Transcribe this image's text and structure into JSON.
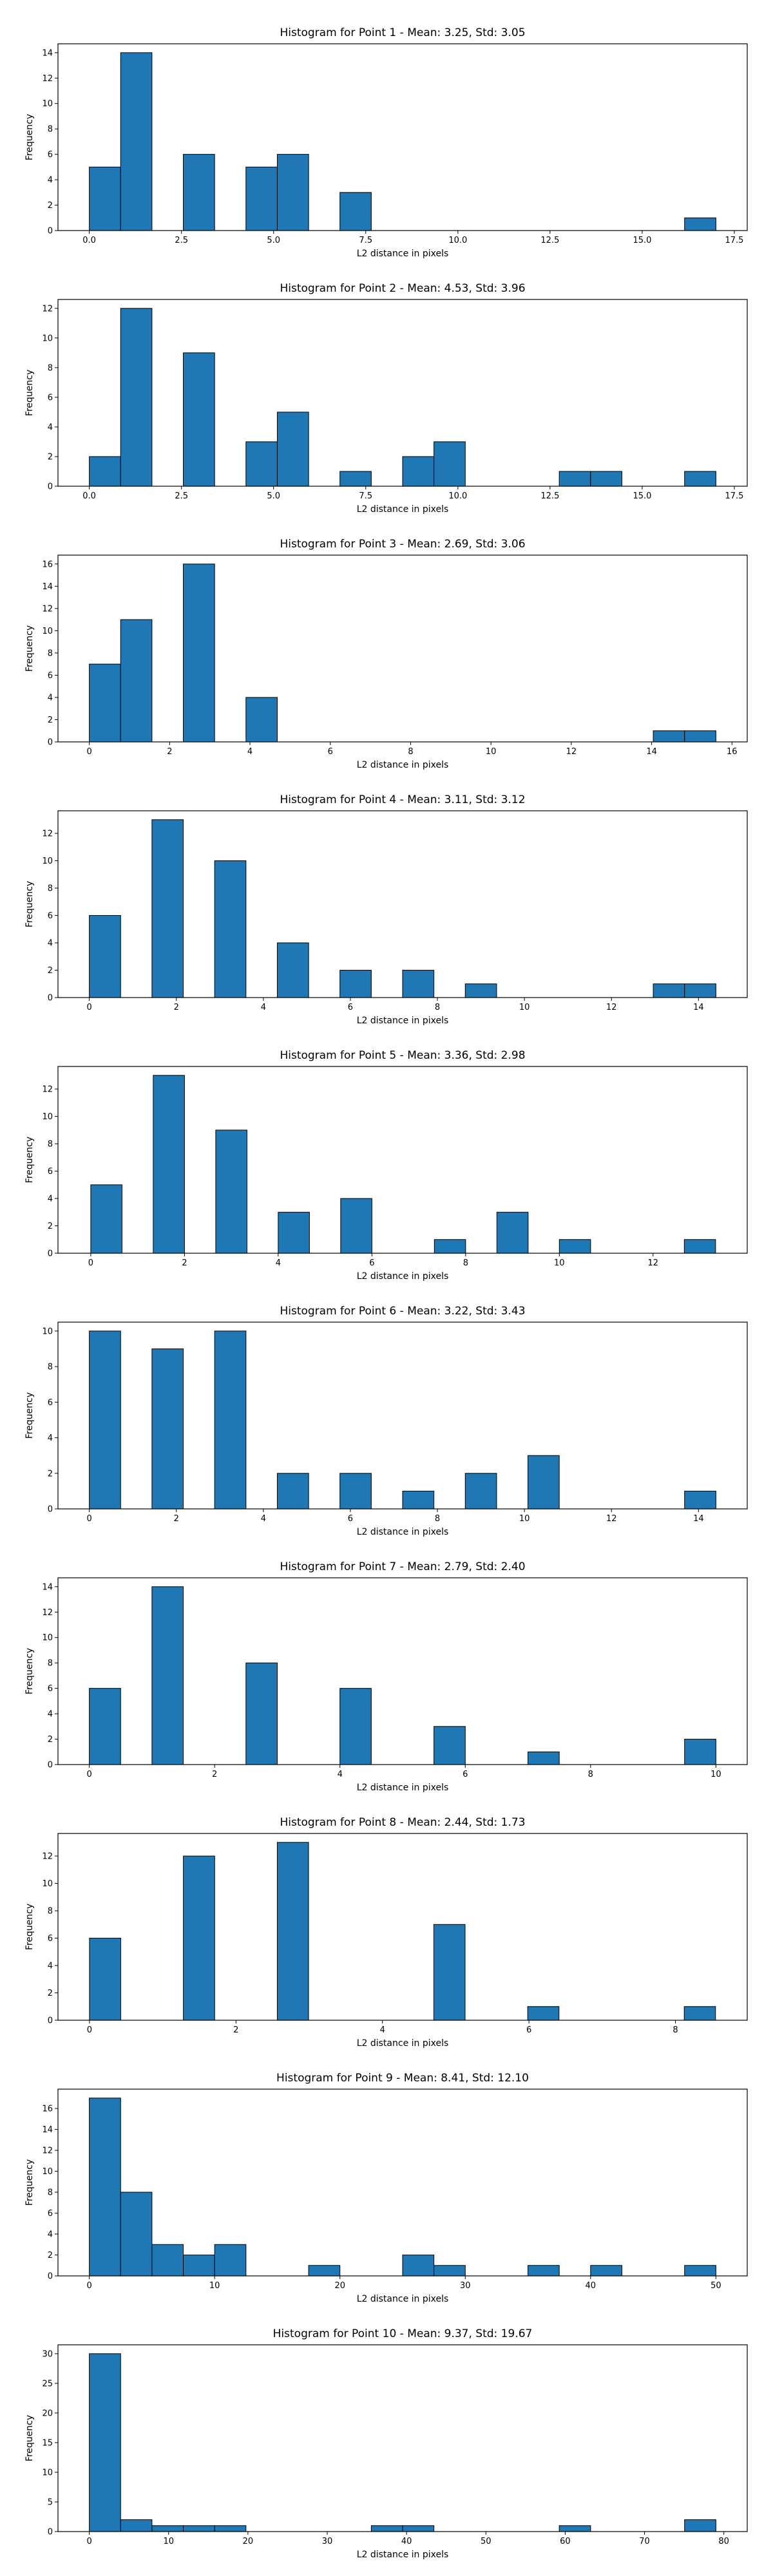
{
  "chart_data": [
    {
      "type": "bar",
      "title": "Histogram for Point 1 - Mean: 3.25, Std: 3.05",
      "xlabel": "L2 distance in pixels",
      "ylabel": "Frequency",
      "xlim": [
        -0.85,
        17.85
      ],
      "ylim": [
        0,
        14.7
      ],
      "xticks": [
        "0.0",
        "2.5",
        "5.0",
        "7.5",
        "10.0",
        "12.5",
        "15.0",
        "17.5"
      ],
      "xtick_values": [
        0,
        2.5,
        5,
        7.5,
        10,
        12.5,
        15,
        17.5
      ],
      "yticks": [
        "0",
        "2",
        "4",
        "6",
        "8",
        "10",
        "12",
        "14"
      ],
      "ytick_values": [
        0,
        2,
        4,
        6,
        8,
        10,
        12,
        14
      ],
      "bar_width": 0.85,
      "bars": [
        [
          0,
          5
        ],
        [
          0.85,
          14
        ],
        [
          2.55,
          6
        ],
        [
          4.25,
          5
        ],
        [
          5.1,
          6
        ],
        [
          6.8,
          3
        ],
        [
          16.15,
          1
        ]
      ],
      "color": "#1f77b4",
      "grid": false
    },
    {
      "type": "bar",
      "title": "Histogram for Point 2 - Mean: 4.53, Std: 3.96",
      "xlabel": "L2 distance in pixels",
      "ylabel": "Frequency",
      "xlim": [
        -0.85,
        17.85
      ],
      "ylim": [
        0,
        12.6
      ],
      "xticks": [
        "0.0",
        "2.5",
        "5.0",
        "7.5",
        "10.0",
        "12.5",
        "15.0",
        "17.5"
      ],
      "xtick_values": [
        0,
        2.5,
        5,
        7.5,
        10,
        12.5,
        15,
        17.5
      ],
      "yticks": [
        "0",
        "2",
        "4",
        "6",
        "8",
        "10",
        "12"
      ],
      "ytick_values": [
        0,
        2,
        4,
        6,
        8,
        10,
        12
      ],
      "bar_width": 0.85,
      "bars": [
        [
          0,
          2
        ],
        [
          0.85,
          12
        ],
        [
          2.55,
          9
        ],
        [
          4.25,
          3
        ],
        [
          5.1,
          5
        ],
        [
          6.8,
          1
        ],
        [
          8.5,
          2
        ],
        [
          9.35,
          3
        ],
        [
          12.75,
          1
        ],
        [
          13.6,
          1
        ],
        [
          16.15,
          1
        ]
      ],
      "color": "#1f77b4",
      "grid": false
    },
    {
      "type": "bar",
      "title": "Histogram for Point 3 - Mean: 2.69, Std: 3.06",
      "xlabel": "L2 distance in pixels",
      "ylabel": "Frequency",
      "xlim": [
        -0.78,
        16.38
      ],
      "ylim": [
        0,
        16.8
      ],
      "xticks": [
        "0",
        "2",
        "4",
        "6",
        "8",
        "10",
        "12",
        "14",
        "16"
      ],
      "xtick_values": [
        0,
        2,
        4,
        6,
        8,
        10,
        12,
        14,
        16
      ],
      "yticks": [
        "0",
        "2",
        "4",
        "6",
        "8",
        "10",
        "12",
        "14",
        "16"
      ],
      "ytick_values": [
        0,
        2,
        4,
        6,
        8,
        10,
        12,
        14,
        16
      ],
      "bar_width": 0.78,
      "bars": [
        [
          0,
          7
        ],
        [
          0.78,
          11
        ],
        [
          2.34,
          16
        ],
        [
          3.9,
          4
        ],
        [
          14.04,
          1
        ],
        [
          14.82,
          1
        ]
      ],
      "color": "#1f77b4",
      "grid": false
    },
    {
      "type": "bar",
      "title": "Histogram for Point 4 - Mean: 3.11, Std: 3.12",
      "xlabel": "L2 distance in pixels",
      "ylabel": "Frequency",
      "xlim": [
        -0.72,
        15.12
      ],
      "ylim": [
        0,
        13.65
      ],
      "xticks": [
        "0",
        "2",
        "4",
        "6",
        "8",
        "10",
        "12",
        "14"
      ],
      "xtick_values": [
        0,
        2,
        4,
        6,
        8,
        10,
        12,
        14
      ],
      "yticks": [
        "0",
        "2",
        "4",
        "6",
        "8",
        "10",
        "12"
      ],
      "ytick_values": [
        0,
        2,
        4,
        6,
        8,
        10,
        12
      ],
      "bar_width": 0.72,
      "bars": [
        [
          0,
          6
        ],
        [
          1.44,
          13
        ],
        [
          2.88,
          10
        ],
        [
          4.32,
          4
        ],
        [
          5.76,
          2
        ],
        [
          7.2,
          2
        ],
        [
          8.64,
          1
        ],
        [
          12.96,
          1
        ],
        [
          13.68,
          1
        ]
      ],
      "color": "#1f77b4",
      "grid": false
    },
    {
      "type": "bar",
      "title": "Histogram for Point 5 - Mean: 3.36, Std: 2.98",
      "xlabel": "L2 distance in pixels",
      "ylabel": "Frequency",
      "xlim": [
        -0.7,
        14.01
      ],
      "ylim": [
        0,
        13.65
      ],
      "xticks": [
        "0",
        "2",
        "4",
        "6",
        "8",
        "10",
        "12"
      ],
      "xtick_values": [
        0,
        2,
        4,
        6,
        8,
        10,
        12
      ],
      "yticks": [
        "0",
        "2",
        "4",
        "6",
        "8",
        "10",
        "12"
      ],
      "ytick_values": [
        0,
        2,
        4,
        6,
        8,
        10,
        12
      ],
      "bar_width": 0.667,
      "bars": [
        [
          0,
          5
        ],
        [
          1.333,
          13
        ],
        [
          2.667,
          9
        ],
        [
          4.0,
          3
        ],
        [
          5.333,
          4
        ],
        [
          7.333,
          1
        ],
        [
          8.667,
          3
        ],
        [
          10.0,
          1
        ],
        [
          12.667,
          1
        ]
      ],
      "color": "#1f77b4",
      "grid": false
    },
    {
      "type": "bar",
      "title": "Histogram for Point 6 - Mean: 3.22, Std: 3.43",
      "xlabel": "L2 distance in pixels",
      "ylabel": "Frequency",
      "xlim": [
        -0.72,
        15.12
      ],
      "ylim": [
        0,
        10.5
      ],
      "xticks": [
        "0",
        "2",
        "4",
        "6",
        "8",
        "10",
        "12",
        "14"
      ],
      "xtick_values": [
        0,
        2,
        4,
        6,
        8,
        10,
        12,
        14
      ],
      "yticks": [
        "0",
        "2",
        "4",
        "6",
        "8",
        "10"
      ],
      "ytick_values": [
        0,
        2,
        4,
        6,
        8,
        10
      ],
      "bar_width": 0.72,
      "bars": [
        [
          0,
          10
        ],
        [
          1.44,
          9
        ],
        [
          2.88,
          10
        ],
        [
          4.32,
          2
        ],
        [
          5.76,
          2
        ],
        [
          7.2,
          1
        ],
        [
          8.64,
          2
        ],
        [
          10.08,
          3
        ],
        [
          13.68,
          1
        ]
      ],
      "color": "#1f77b4",
      "grid": false
    },
    {
      "type": "bar",
      "title": "Histogram for Point 7 - Mean: 2.79, Std: 2.40",
      "xlabel": "L2 distance in pixels",
      "ylabel": "Frequency",
      "xlim": [
        -0.5,
        10.5
      ],
      "ylim": [
        0,
        14.7
      ],
      "xticks": [
        "0",
        "2",
        "4",
        "6",
        "8",
        "10"
      ],
      "xtick_values": [
        0,
        2,
        4,
        6,
        8,
        10
      ],
      "yticks": [
        "0",
        "2",
        "4",
        "6",
        "8",
        "10",
        "12",
        "14"
      ],
      "ytick_values": [
        0,
        2,
        4,
        6,
        8,
        10,
        12,
        14
      ],
      "bar_width": 0.5,
      "bars": [
        [
          0,
          6
        ],
        [
          1.0,
          14
        ],
        [
          2.5,
          8
        ],
        [
          4.0,
          6
        ],
        [
          5.5,
          3
        ],
        [
          7.0,
          1
        ],
        [
          9.5,
          2
        ]
      ],
      "color": "#1f77b4",
      "grid": false
    },
    {
      "type": "bar",
      "title": "Histogram for Point 8 - Mean: 2.44, Std: 1.73",
      "xlabel": "L2 distance in pixels",
      "ylabel": "Frequency",
      "xlim": [
        -0.43,
        8.98
      ],
      "ylim": [
        0,
        13.65
      ],
      "xticks": [
        "0",
        "2",
        "4",
        "6",
        "8"
      ],
      "xtick_values": [
        0,
        2,
        4,
        6,
        8
      ],
      "yticks": [
        "0",
        "2",
        "4",
        "6",
        "8",
        "10",
        "12"
      ],
      "ytick_values": [
        0,
        2,
        4,
        6,
        8,
        10,
        12
      ],
      "bar_width": 0.427,
      "bars": [
        [
          0,
          6
        ],
        [
          1.282,
          12
        ],
        [
          2.564,
          13
        ],
        [
          4.701,
          7
        ],
        [
          5.983,
          1
        ],
        [
          8.12,
          1
        ]
      ],
      "color": "#1f77b4",
      "grid": false
    },
    {
      "type": "bar",
      "title": "Histogram for Point 9 - Mean: 8.41, Std: 12.10",
      "xlabel": "L2 distance in pixels",
      "ylabel": "Frequency",
      "xlim": [
        -2.5,
        52.5
      ],
      "ylim": [
        0,
        17.85
      ],
      "xticks": [
        "0",
        "10",
        "20",
        "30",
        "40",
        "50"
      ],
      "xtick_values": [
        0,
        10,
        20,
        30,
        40,
        50
      ],
      "yticks": [
        "0",
        "2",
        "4",
        "6",
        "8",
        "10",
        "12",
        "14",
        "16"
      ],
      "ytick_values": [
        0,
        2,
        4,
        6,
        8,
        10,
        12,
        14,
        16
      ],
      "bar_width": 2.5,
      "bars": [
        [
          0,
          17
        ],
        [
          2.5,
          8
        ],
        [
          5.0,
          3
        ],
        [
          7.5,
          2
        ],
        [
          10.0,
          3
        ],
        [
          17.5,
          1
        ],
        [
          25.0,
          2
        ],
        [
          27.5,
          1
        ],
        [
          35.0,
          1
        ],
        [
          40.0,
          1
        ],
        [
          47.5,
          1
        ]
      ],
      "color": "#1f77b4",
      "grid": false
    },
    {
      "type": "bar",
      "title": "Histogram for Point 10 - Mean: 9.37, Std: 19.67",
      "xlabel": "L2 distance in pixels",
      "ylabel": "Frequency",
      "xlim": [
        -3.95,
        82.95
      ],
      "ylim": [
        0,
        31.5
      ],
      "xticks": [
        "0",
        "10",
        "20",
        "30",
        "40",
        "50",
        "60",
        "70",
        "80"
      ],
      "xtick_values": [
        0,
        10,
        20,
        30,
        40,
        50,
        60,
        70,
        80
      ],
      "yticks": [
        "0",
        "5",
        "10",
        "15",
        "20",
        "25",
        "30"
      ],
      "ytick_values": [
        0,
        5,
        10,
        15,
        20,
        25,
        30
      ],
      "bar_width": 3.95,
      "bars": [
        [
          0,
          30
        ],
        [
          3.95,
          2
        ],
        [
          7.9,
          1
        ],
        [
          11.85,
          1
        ],
        [
          15.8,
          1
        ],
        [
          35.55,
          1
        ],
        [
          39.5,
          1
        ],
        [
          59.25,
          1
        ],
        [
          75.05,
          2
        ]
      ],
      "color": "#1f77b4",
      "grid": false
    }
  ]
}
